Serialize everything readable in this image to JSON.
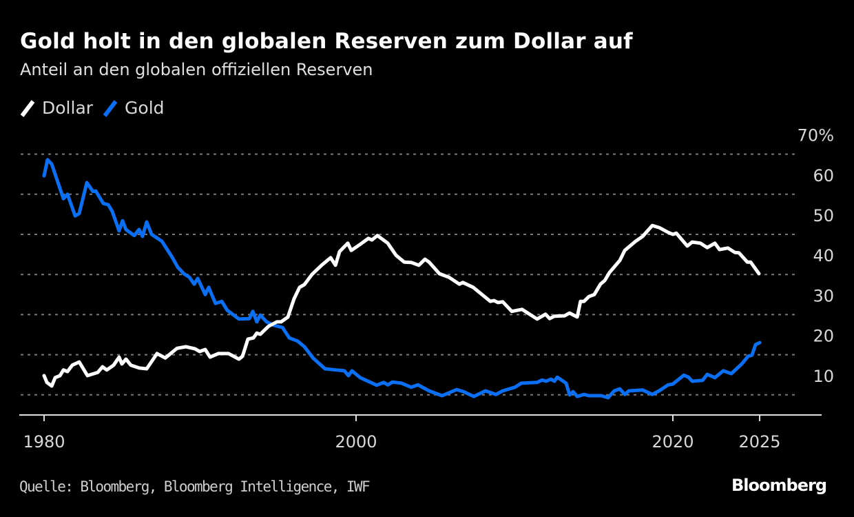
{
  "title": "Gold holt in den globalen Reserven zum Dollar auf",
  "subtitle": "Anteil an den globalen offiziellen Reserven",
  "legend": [
    {
      "label": "Dollar",
      "color": "#ffffff"
    },
    {
      "label": "Gold",
      "color": "#0a6ff2"
    }
  ],
  "source": "Quelle: Bloomberg, Bloomberg Intelligence, IWF",
  "logo": "Bloomberg",
  "chart_data": {
    "type": "line",
    "title": "Gold holt in den globalen Reserven zum Dollar auf",
    "subtitle": "Anteil an den globalen offiziellen Reserven",
    "xlabel": "",
    "ylabel": "",
    "ylim": [
      5,
      70
    ],
    "xlim": [
      1978.5,
      2029.5
    ],
    "y_ticks": [
      10,
      20,
      30,
      40,
      50,
      60,
      70
    ],
    "y_tick_labels": [
      "10",
      "20",
      "30",
      "40",
      "50",
      "60",
      "70%"
    ],
    "x_ticks": [
      1980,
      2000,
      2020,
      2025
    ],
    "x_tick_labels": [
      "1980",
      "2000",
      "2020",
      "2025"
    ],
    "grid": "horizontal-dotted",
    "legend_position": "top-left",
    "series": [
      {
        "name": "Dollar",
        "color": "#ffffff",
        "x": [
          1980.0,
          1980.18,
          1980.49,
          1980.71,
          1981.02,
          1981.24,
          1981.5,
          1981.81,
          1982.25,
          1982.78,
          1983.44,
          1983.75,
          1984.02,
          1984.46,
          1984.81,
          1984.99,
          1985.25,
          1985.56,
          1986.09,
          1986.58,
          1987.24,
          1987.77,
          1988.52,
          1989.09,
          1989.67,
          1989.98,
          1990.33,
          1990.64,
          1991.17,
          1991.83,
          1992.49,
          1992.72,
          1993.07,
          1993.42,
          1993.64,
          1993.86,
          1994.39,
          1994.92,
          1995.19,
          1995.63,
          1996.03,
          1996.38,
          1996.69,
          1997.17,
          1997.79,
          1998.37,
          1998.68,
          1998.94,
          1999.47,
          1999.69,
          2000.22,
          2000.78,
          2001.0,
          2001.35,
          2002.0,
          2002.52,
          2003.04,
          2003.48,
          2003.96,
          2004.35,
          2004.61,
          2005.26,
          2005.87,
          2006.52,
          2006.74,
          2007.39,
          2008.48,
          2008.7,
          2008.96,
          2009.26,
          2009.83,
          2010.48,
          2011.43,
          2011.96,
          2012.22,
          2012.52,
          2013.17,
          2013.48,
          2013.96,
          2014.17,
          2014.39,
          2014.7,
          2015.04,
          2015.43,
          2015.7,
          2016.0,
          2016.65,
          2016.96,
          2017.65,
          2018.09,
          2018.7,
          2019.13,
          2019.7,
          2020.0,
          2020.2,
          2020.83,
          2021.11,
          2021.59,
          2021.98,
          2022.42,
          2022.69,
          2023.17,
          2023.57,
          2023.81,
          2024.29,
          2024.48,
          2024.96
        ],
        "values": [
          14.8,
          13.1,
          12.2,
          14.3,
          14.8,
          16.2,
          15.8,
          17.4,
          18.2,
          14.8,
          15.6,
          17.0,
          16.2,
          17.4,
          19.4,
          17.7,
          18.9,
          17.4,
          16.7,
          16.5,
          20.3,
          19.2,
          21.6,
          22.0,
          21.5,
          20.8,
          21.3,
          19.4,
          20.3,
          20.3,
          18.9,
          19.6,
          23.9,
          24.2,
          25.4,
          25.1,
          27.1,
          28.2,
          28.2,
          29.4,
          34.0,
          36.8,
          37.5,
          40.0,
          42.3,
          44.2,
          42.3,
          45.7,
          47.8,
          46.0,
          47.4,
          49.0,
          48.6,
          49.7,
          47.8,
          44.8,
          43.1,
          43.0,
          42.3,
          43.8,
          43.1,
          40.2,
          39.3,
          37.6,
          38.0,
          36.8,
          33.3,
          33.5,
          33.0,
          33.2,
          30.8,
          31.3,
          28.9,
          30.1,
          29.0,
          29.6,
          29.7,
          30.4,
          29.4,
          33.3,
          33.3,
          34.5,
          35.0,
          37.6,
          38.5,
          40.5,
          43.5,
          46.0,
          48.3,
          49.5,
          52.2,
          51.7,
          50.5,
          50.0,
          50.3,
          47.1,
          48.1,
          47.8,
          46.7,
          47.8,
          46.2,
          46.6,
          45.5,
          45.4,
          43.1,
          43.1,
          40.2
        ]
      },
      {
        "name": "Gold",
        "color": "#0a6ff2",
        "x": [
          1980.0,
          1980.22,
          1980.49,
          1981.24,
          1981.5,
          1981.99,
          1982.25,
          1982.74,
          1983.13,
          1983.31,
          1983.8,
          1984.11,
          1984.37,
          1984.81,
          1985.03,
          1985.25,
          1985.78,
          1986.09,
          1986.31,
          1986.58,
          1986.89,
          1987.55,
          1988.21,
          1988.57,
          1988.96,
          1989.32,
          1989.62,
          1989.85,
          1990.33,
          1990.55,
          1990.99,
          1991.39,
          1991.74,
          1992.49,
          1993.16,
          1993.38,
          1993.64,
          1993.86,
          1994.26,
          1994.75,
          1995.28,
          1995.72,
          1996.25,
          1996.69,
          1997.26,
          1998.01,
          1998.72,
          1999.25,
          1999.51,
          1999.74,
          2000.26,
          2001.3,
          2001.74,
          2002.0,
          2002.3,
          2002.87,
          2003.48,
          2003.91,
          2004.61,
          2005.43,
          2006.35,
          2006.78,
          2007.43,
          2008.17,
          2008.83,
          2009.26,
          2010.04,
          2010.43,
          2011.43,
          2011.74,
          2012.0,
          2012.3,
          2012.52,
          2012.7,
          2013.26,
          2013.48,
          2013.7,
          2013.96,
          2014.39,
          2014.7,
          2015.48,
          2015.91,
          2016.3,
          2016.65,
          2016.96,
          2017.22,
          2018.09,
          2018.7,
          2019.13,
          2019.7,
          2020.0,
          2020.63,
          2020.9,
          2021.11,
          2021.71,
          2021.98,
          2022.42,
          2022.9,
          2023.37,
          2023.97,
          2024.33,
          2024.56,
          2024.76,
          2025.0
        ],
        "values": [
          64.6,
          68.6,
          67.5,
          58.9,
          60.0,
          54.6,
          55.2,
          62.9,
          60.7,
          60.8,
          57.7,
          57.4,
          55.7,
          50.9,
          53.4,
          51.2,
          49.7,
          51.2,
          49.5,
          53.1,
          50.0,
          48.3,
          44.3,
          41.8,
          40.2,
          39.3,
          37.6,
          39.0,
          35.0,
          36.8,
          32.8,
          33.3,
          31.1,
          28.9,
          29.0,
          30.8,
          28.2,
          29.9,
          28.2,
          27.3,
          26.8,
          24.2,
          23.4,
          22.0,
          19.1,
          16.5,
          16.2,
          16.0,
          14.8,
          16.0,
          14.3,
          12.4,
          13.1,
          12.5,
          13.2,
          12.9,
          11.9,
          12.5,
          11.0,
          9.8,
          11.3,
          10.8,
          9.6,
          11.0,
          10.1,
          11.0,
          11.9,
          12.9,
          13.1,
          13.7,
          13.4,
          13.9,
          13.4,
          14.4,
          12.9,
          10.0,
          10.8,
          9.6,
          10.1,
          9.8,
          9.8,
          9.3,
          11.0,
          11.5,
          10.1,
          11.0,
          11.2,
          10.1,
          11.0,
          12.5,
          12.7,
          14.9,
          14.4,
          13.4,
          13.6,
          15.1,
          14.3,
          16.0,
          15.3,
          17.7,
          19.6,
          19.9,
          22.5,
          23.0
        ]
      }
    ]
  }
}
